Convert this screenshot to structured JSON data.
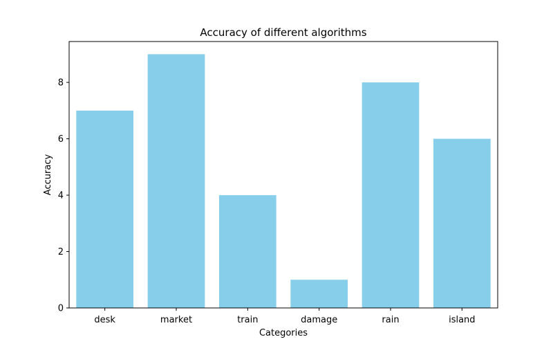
{
  "chart_data": {
    "type": "bar",
    "title": "Accuracy of different algorithms",
    "xlabel": "Categories",
    "ylabel": "Accuracy",
    "categories": [
      "desk",
      "market",
      "train",
      "damage",
      "rain",
      "island"
    ],
    "values": [
      7,
      9,
      4,
      1,
      8,
      6
    ],
    "ylim": [
      0,
      9.45
    ],
    "yticks": [
      0,
      2,
      4,
      6,
      8
    ],
    "bar_color": "#87CEEB",
    "grid": false,
    "legend": "none"
  }
}
